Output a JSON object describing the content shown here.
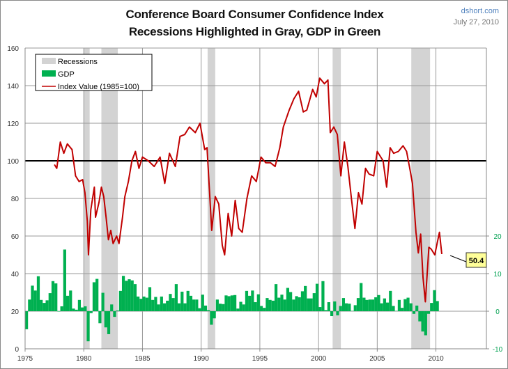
{
  "header": {
    "title": "Conference Board Consumer Confidence Index",
    "subtitle": "Recessions Highlighted in Gray, GDP in Green",
    "source": "dshort.com",
    "date": "July 27, 2010"
  },
  "colors": {
    "index": "#c00000",
    "gdp": "#00b050",
    "recession": "#d3d3d3",
    "callout": "#ffff99",
    "secondary_axis": "#00a050"
  },
  "chart_data": {
    "type": "line",
    "title": "Conference Board Consumer Confidence Index",
    "xlim": [
      1975,
      2014.3
    ],
    "xticks": [
      "1975",
      "1980",
      "1985",
      "1990",
      "1995",
      "2000",
      "2005",
      "2010"
    ],
    "ylim": [
      0,
      160
    ],
    "yticks": [
      "0",
      "20",
      "40",
      "60",
      "80",
      "100",
      "120",
      "140",
      "160"
    ],
    "y2lim": [
      -10,
      70
    ],
    "y2ticks": [
      "-10",
      "0",
      "10",
      "20"
    ],
    "reference_line": 100,
    "grid": true,
    "legend": {
      "placement": "top-left",
      "entries": [
        "Recessions",
        "GDP",
        "Index Value (1985=100)"
      ]
    },
    "callout": "50.4",
    "recessions": [
      [
        1980.0,
        1980.5
      ],
      [
        1981.5,
        1982.9
      ],
      [
        1990.55,
        1991.2
      ],
      [
        2001.2,
        2001.9
      ],
      [
        2007.9,
        2009.5
      ]
    ],
    "gdp": {
      "name": "GDP",
      "start": 1975.0,
      "step": 0.25,
      "values": [
        -4.8,
        3.1,
        6.8,
        5.5,
        9.3,
        3.0,
        2.2,
        2.9,
        4.8,
        8.0,
        7.4,
        0.0,
        1.3,
        16.4,
        4.1,
        5.5,
        0.7,
        0.4,
        3.0,
        1.0,
        1.3,
        -8.0,
        -0.5,
        7.7,
        8.6,
        -3.2,
        4.9,
        -4.3,
        -6.1,
        1.8,
        -1.5,
        0.2,
        5.4,
        9.4,
        8.1,
        8.5,
        8.2,
        7.2,
        3.9,
        3.3,
        3.9,
        3.6,
        6.4,
        3.0,
        3.8,
        1.8,
        3.9,
        2.1,
        2.8,
        4.6,
        3.5,
        7.2,
        2.1,
        5.2,
        2.1,
        5.4,
        4.1,
        3.1,
        3.1,
        0.8,
        4.4,
        1.5,
        0.3,
        -3.6,
        -1.9,
        3.1,
        2.0,
        1.9,
        4.2,
        4.0,
        4.2,
        4.3,
        0.7,
        2.5,
        1.8,
        5.4,
        4.1,
        5.5,
        2.4,
        4.5,
        1.4,
        0.9,
        3.5,
        3.0,
        2.8,
        7.2,
        3.6,
        4.4,
        3.1,
        6.2,
        5.1,
        3.1,
        4.0,
        3.7,
        5.3,
        6.7,
        3.4,
        3.4,
        4.8,
        7.3,
        1.1,
        8.0,
        0.3,
        2.4,
        -1.3,
        2.6,
        -1.1,
        1.4,
        3.5,
        2.1,
        2.0,
        0.1,
        1.6,
        3.5,
        7.5,
        3.6,
        3.0,
        3.1,
        3.1,
        3.7,
        4.3,
        2.1,
        3.4,
        2.3,
        5.4,
        1.4,
        0.1,
        3.0,
        0.9,
        3.2,
        3.6,
        2.1,
        -0.7,
        1.5,
        -2.7,
        -5.4,
        -6.4,
        -0.7,
        2.2,
        5.6,
        2.7
      ]
    },
    "index": {
      "name": "Index Value (1985=100)",
      "points": [
        [
          1977.5,
          98
        ],
        [
          1977.7,
          96
        ],
        [
          1978.0,
          110
        ],
        [
          1978.3,
          104
        ],
        [
          1978.6,
          109
        ],
        [
          1979.0,
          106
        ],
        [
          1979.3,
          92
        ],
        [
          1979.6,
          89
        ],
        [
          1979.9,
          90
        ],
        [
          1980.1,
          83
        ],
        [
          1980.3,
          68
        ],
        [
          1980.4,
          50
        ],
        [
          1980.6,
          74
        ],
        [
          1980.9,
          86
        ],
        [
          1981.0,
          70
        ],
        [
          1981.3,
          78
        ],
        [
          1981.5,
          86
        ],
        [
          1981.7,
          81
        ],
        [
          1981.9,
          70
        ],
        [
          1982.1,
          58
        ],
        [
          1982.3,
          63
        ],
        [
          1982.5,
          56
        ],
        [
          1982.8,
          60
        ],
        [
          1983.0,
          56
        ],
        [
          1983.3,
          70
        ],
        [
          1983.5,
          81
        ],
        [
          1983.8,
          89
        ],
        [
          1984.1,
          100
        ],
        [
          1984.4,
          105
        ],
        [
          1984.7,
          96
        ],
        [
          1985.0,
          102
        ],
        [
          1985.5,
          100
        ],
        [
          1986.0,
          97
        ],
        [
          1986.5,
          102
        ],
        [
          1986.9,
          88
        ],
        [
          1987.3,
          104
        ],
        [
          1987.8,
          97
        ],
        [
          1988.2,
          113
        ],
        [
          1988.6,
          114
        ],
        [
          1989.0,
          118
        ],
        [
          1989.5,
          115
        ],
        [
          1989.9,
          120
        ],
        [
          1990.3,
          106
        ],
        [
          1990.5,
          107
        ],
        [
          1990.7,
          85
        ],
        [
          1990.9,
          63
        ],
        [
          1991.2,
          81
        ],
        [
          1991.5,
          77
        ],
        [
          1991.8,
          55
        ],
        [
          1992.0,
          50
        ],
        [
          1992.3,
          72
        ],
        [
          1992.6,
          60
        ],
        [
          1992.9,
          79
        ],
        [
          1993.2,
          64
        ],
        [
          1993.5,
          62
        ],
        [
          1993.9,
          80
        ],
        [
          1994.3,
          92
        ],
        [
          1994.7,
          89
        ],
        [
          1995.1,
          102
        ],
        [
          1995.5,
          99
        ],
        [
          1995.9,
          99
        ],
        [
          1996.3,
          97
        ],
        [
          1996.7,
          107
        ],
        [
          1997.0,
          118
        ],
        [
          1997.5,
          127
        ],
        [
          1997.9,
          133
        ],
        [
          1998.3,
          137
        ],
        [
          1998.7,
          126
        ],
        [
          1999.0,
          127
        ],
        [
          1999.5,
          138
        ],
        [
          1999.8,
          134
        ],
        [
          2000.1,
          144
        ],
        [
          2000.5,
          141
        ],
        [
          2000.8,
          143
        ],
        [
          2001.0,
          115
        ],
        [
          2001.3,
          118
        ],
        [
          2001.6,
          114
        ],
        [
          2001.9,
          92
        ],
        [
          2002.2,
          110
        ],
        [
          2002.5,
          97
        ],
        [
          2002.8,
          80
        ],
        [
          2003.1,
          64
        ],
        [
          2003.4,
          83
        ],
        [
          2003.7,
          77
        ],
        [
          2004.0,
          96
        ],
        [
          2004.3,
          93
        ],
        [
          2004.7,
          92
        ],
        [
          2005.0,
          105
        ],
        [
          2005.5,
          100
        ],
        [
          2005.8,
          86
        ],
        [
          2006.1,
          107
        ],
        [
          2006.4,
          104
        ],
        [
          2006.8,
          105
        ],
        [
          2007.2,
          108
        ],
        [
          2007.5,
          105
        ],
        [
          2007.8,
          95
        ],
        [
          2008.0,
          88
        ],
        [
          2008.3,
          62
        ],
        [
          2008.5,
          51
        ],
        [
          2008.7,
          61
        ],
        [
          2008.9,
          38
        ],
        [
          2009.1,
          25
        ],
        [
          2009.4,
          54
        ],
        [
          2009.6,
          53
        ],
        [
          2009.9,
          50
        ],
        [
          2010.1,
          56
        ],
        [
          2010.3,
          62
        ],
        [
          2010.5,
          50.4
        ]
      ]
    }
  }
}
